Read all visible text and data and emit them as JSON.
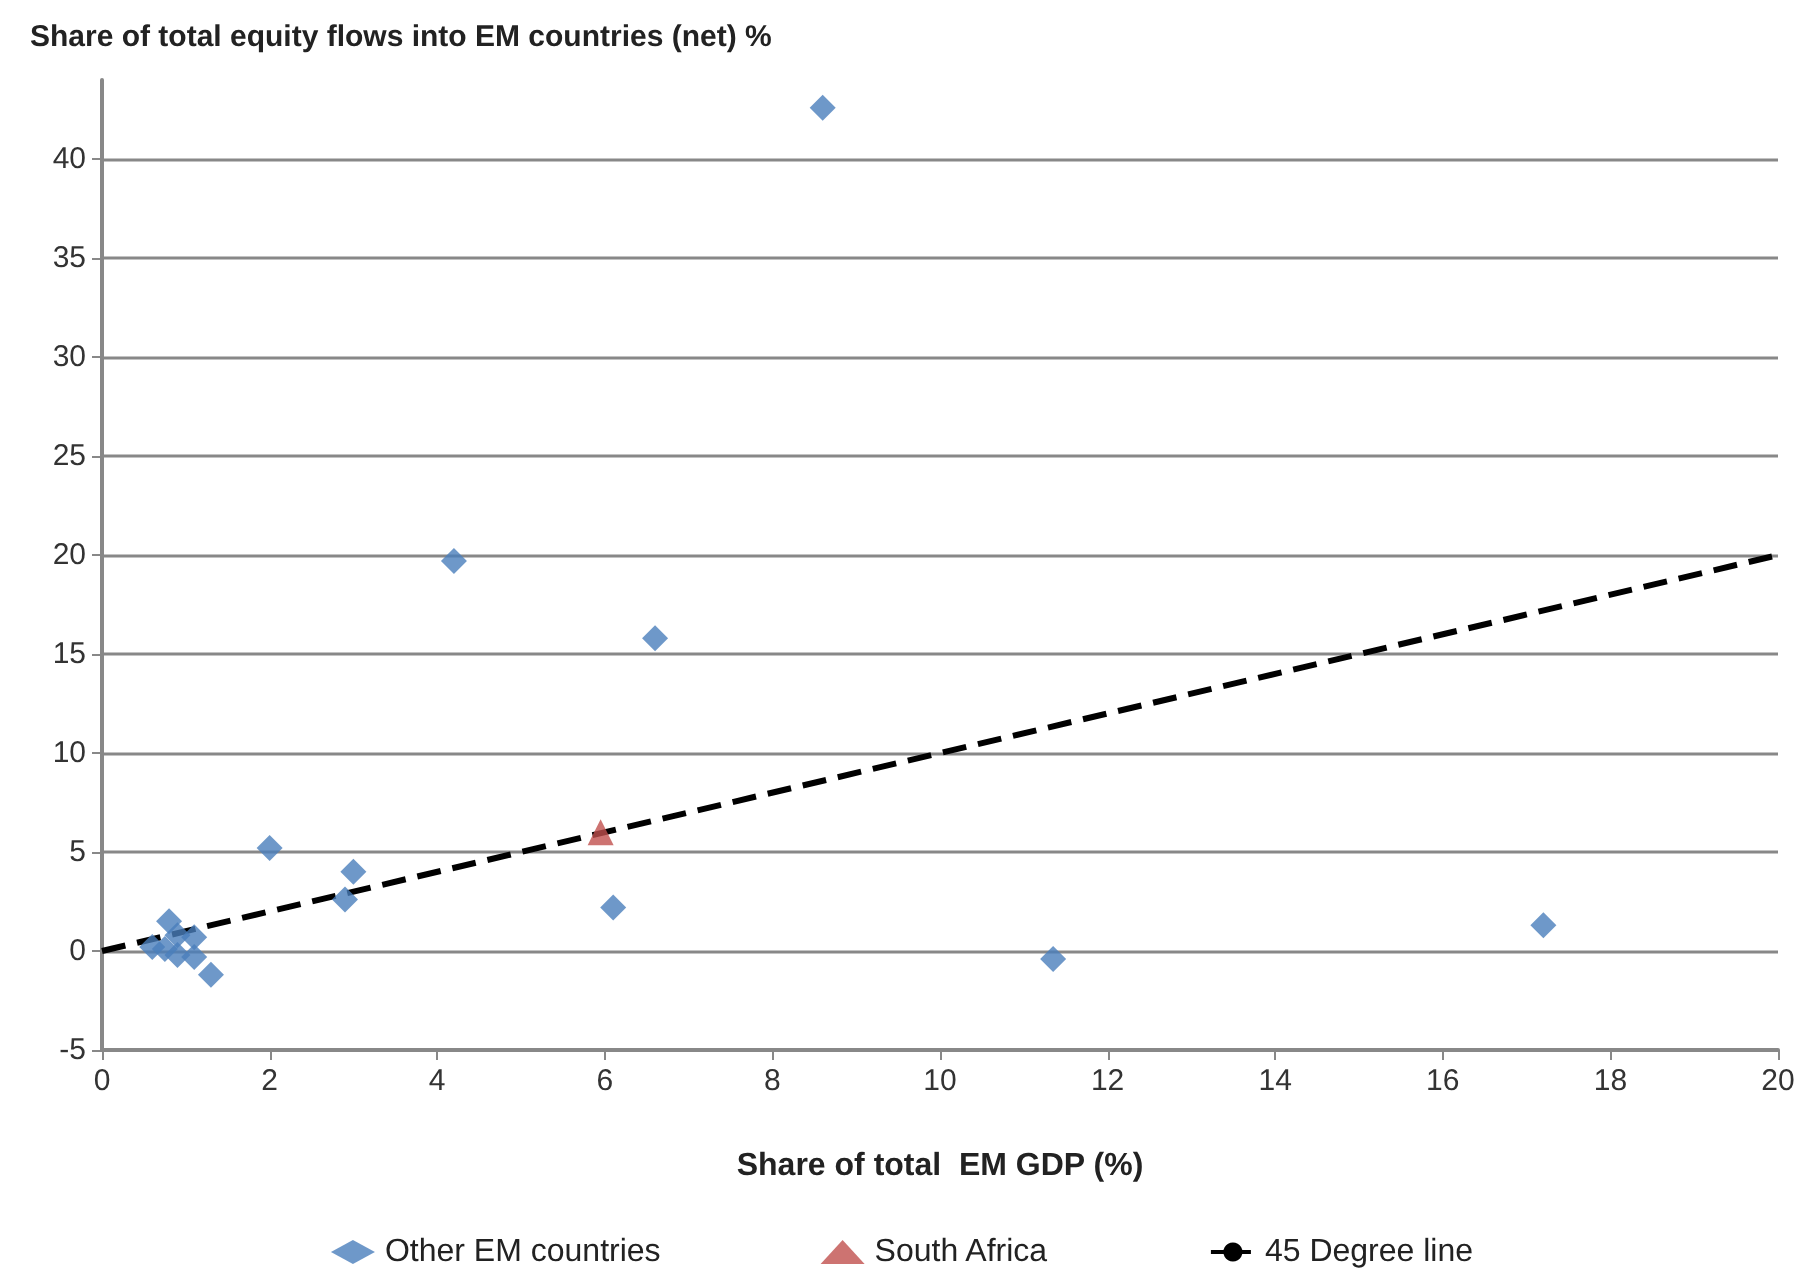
{
  "chart_data": {
    "type": "scatter",
    "ylabel": "Share of total equity flows into EM countries (net) %",
    "xlabel": "Share of total  EM GDP (%)",
    "series": [
      {
        "name": "Other EM countries",
        "color": "#4a7ebb",
        "marker": "diamond",
        "x": [
          0.6,
          0.75,
          0.8,
          0.9,
          0.9,
          1.1,
          1.1,
          1.3,
          2.0,
          2.9,
          3.0,
          4.2,
          6.1,
          6.6,
          8.6,
          11.35,
          17.2
        ],
        "values": [
          0.2,
          0.1,
          1.5,
          0.8,
          -0.2,
          0.7,
          -0.3,
          -1.2,
          5.2,
          2.6,
          4.0,
          19.7,
          2.2,
          15.8,
          42.6,
          -0.4,
          1.3
        ]
      },
      {
        "name": "South Africa",
        "color": "#c0504d",
        "marker": "triangle",
        "x": [
          5.95
        ],
        "values": [
          6.0
        ]
      },
      {
        "name": "45 Degree line",
        "type": "line",
        "color": "#000000",
        "marker": "none",
        "line_style": "dashed",
        "x": [
          0,
          20
        ],
        "values": [
          0,
          20
        ]
      }
    ],
    "xlim": [
      0,
      20
    ],
    "xticks": [
      0,
      2,
      4,
      6,
      8,
      10,
      12,
      14,
      16,
      18,
      20
    ],
    "ylim": [
      -5,
      44
    ],
    "yticks": [
      -5,
      0,
      5,
      10,
      15,
      20,
      25,
      30,
      35,
      40
    ],
    "grid": "y",
    "legend": "bottom"
  }
}
